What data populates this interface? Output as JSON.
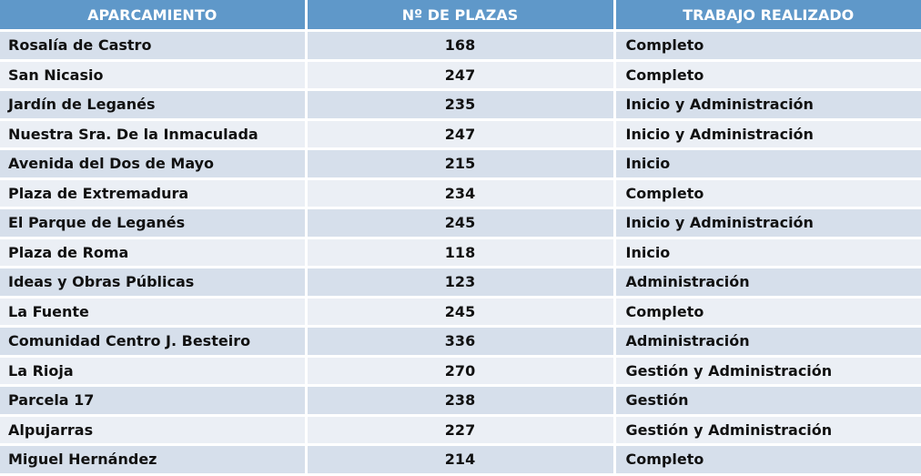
{
  "headers": [
    "APARCAMIENTO",
    "Nº DE PLAZAS",
    "TRABAJO REALIZADO"
  ],
  "rows": [
    [
      "Rosalía de Castro",
      "168",
      "Completo"
    ],
    [
      "San Nicasio",
      "247",
      "Completo"
    ],
    [
      "Jardín de Leganés",
      "235",
      "Inicio y Administración"
    ],
    [
      "Nuestra Sra. De la Inmaculada",
      "247",
      "Inicio y Administración"
    ],
    [
      "Avenida del Dos de Mayo",
      "215",
      "Inicio"
    ],
    [
      "Plaza de Extremadura",
      "234",
      "Completo"
    ],
    [
      "El Parque de Leganés",
      "245",
      "Inicio y Administración"
    ],
    [
      "Plaza de Roma",
      "118",
      "Inicio"
    ],
    [
      "Ideas y Obras Públicas",
      "123",
      "Administración"
    ],
    [
      "La Fuente",
      "245",
      "Completo"
    ],
    [
      "Comunidad Centro J. Besteiro",
      "336",
      "Administración"
    ],
    [
      "La Rioja",
      "270",
      "Gestión y Administración"
    ],
    [
      "Parcela 17",
      "238",
      "Gestión"
    ],
    [
      "Alpujarras",
      "227",
      "Gestión y Administración"
    ],
    [
      "Miguel Hernández",
      "214",
      "Completo"
    ]
  ],
  "colors": {
    "header_bg": "#5f98c9",
    "row_odd": "#d6dfeb",
    "row_even": "#ebeff5"
  }
}
